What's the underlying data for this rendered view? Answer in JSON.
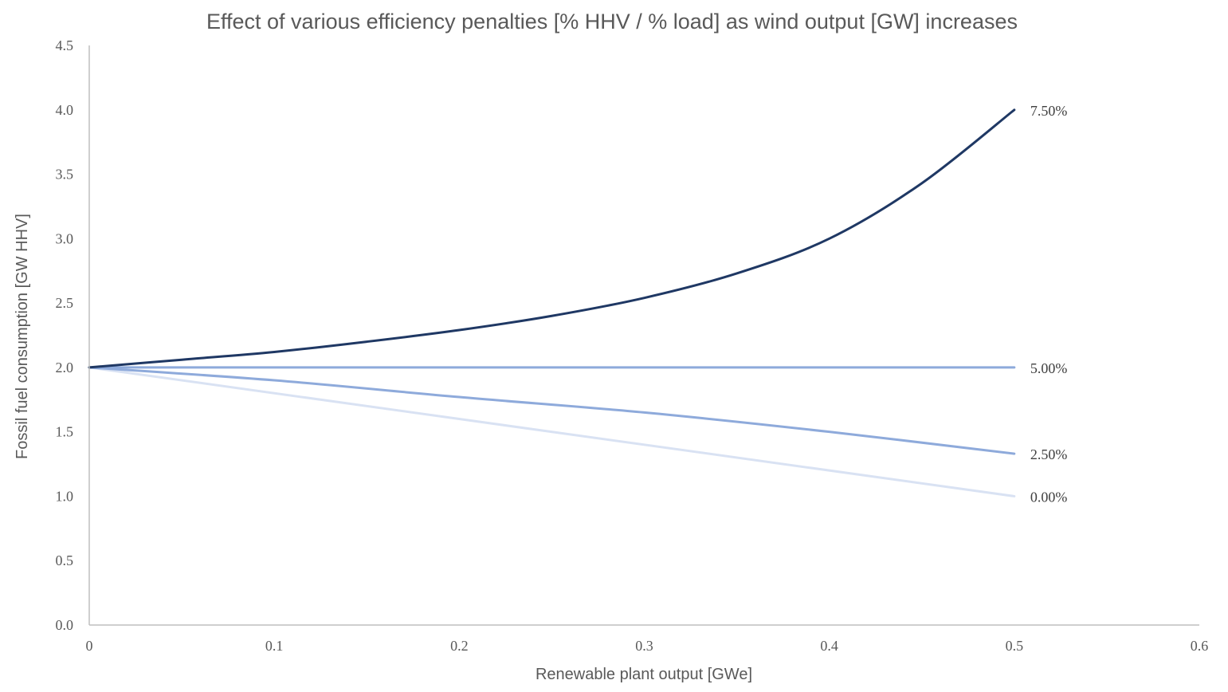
{
  "chart_data": {
    "type": "line",
    "title": "Effect of various efficiency penalties [% HHV / % load] as wind output [GW] increases",
    "xlabel": "Renewable plant output [GWe]",
    "ylabel": "Fossil fuel  consumption [GW HHV]",
    "xlim": [
      0,
      0.6
    ],
    "ylim": [
      0,
      4.5
    ],
    "x_ticks": [
      "0",
      "0.1",
      "0.2",
      "0.3",
      "0.4",
      "0.5",
      "0.6"
    ],
    "y_ticks": [
      "0.0",
      "0.5",
      "1.0",
      "1.5",
      "2.0",
      "2.5",
      "3.0",
      "3.5",
      "4.0",
      "4.5"
    ],
    "grid": false,
    "legend": "none (series labels at line ends)",
    "series": [
      {
        "name": "7.50%",
        "color": "#1f3864",
        "x": [
          0,
          0.05,
          0.1,
          0.15,
          0.2,
          0.25,
          0.3,
          0.35,
          0.4,
          0.45,
          0.5
        ],
        "y": [
          2.0,
          2.06,
          2.12,
          2.2,
          2.29,
          2.4,
          2.54,
          2.73,
          3.0,
          3.43,
          4.0
        ]
      },
      {
        "name": "5.00%",
        "color": "#8eaadb",
        "x": [
          0,
          0.5
        ],
        "y": [
          2.0,
          2.0
        ]
      },
      {
        "name": "2.50%",
        "color": "#8eaadb",
        "x": [
          0,
          0.1,
          0.2,
          0.3,
          0.4,
          0.5
        ],
        "y": [
          2.0,
          1.9,
          1.77,
          1.65,
          1.5,
          1.33
        ]
      },
      {
        "name": "0.00%",
        "color": "#d9e2f3",
        "x": [
          0,
          0.5
        ],
        "y": [
          2.0,
          1.0
        ]
      }
    ]
  }
}
